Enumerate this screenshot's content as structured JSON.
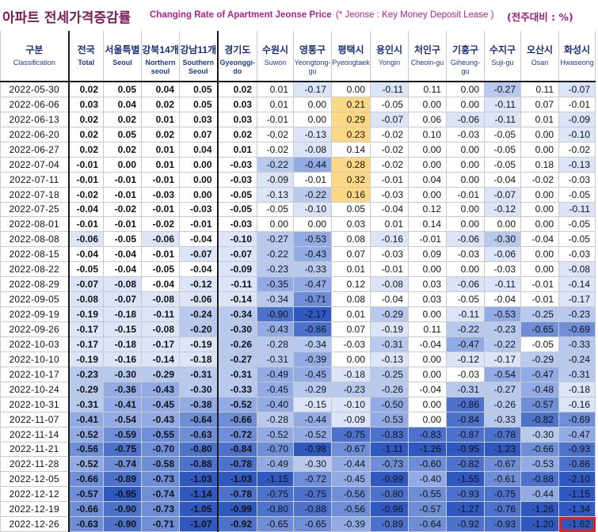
{
  "title": {
    "korean": "아파트 전세가격증감률",
    "english": "Changing Rate of Apartment Jeonse Price",
    "note": "(* Jeonse : Key Money Deposit Lease )",
    "unit": "(전주대비 : %)"
  },
  "columns": [
    {
      "ko": "구분",
      "en": "Classification"
    },
    {
      "ko": "전국",
      "en": "Total"
    },
    {
      "ko": "서울특별",
      "en": "Seoul"
    },
    {
      "ko": "강북14개",
      "en": "Northern seoul"
    },
    {
      "ko": "강남11개",
      "en": "Southern Seoul"
    },
    {
      "ko": "경기도",
      "en": "Gyeonggi-do"
    },
    {
      "ko": "수원시",
      "en": "Suwon"
    },
    {
      "ko": "영통구",
      "en": "Yeongtong-gu"
    },
    {
      "ko": "평택시",
      "en": "Pyeongtaek"
    },
    {
      "ko": "용인시",
      "en": "Yongin"
    },
    {
      "ko": "처인구",
      "en": "Cheoin-gu"
    },
    {
      "ko": "기흥구",
      "en": "Giheung-gu"
    },
    {
      "ko": "수지구",
      "en": "Suji-gu"
    },
    {
      "ko": "오산시",
      "en": "Osan"
    },
    {
      "ko": "화성시",
      "en": "Hwaseong"
    }
  ],
  "rows": [
    {
      "date": "2022-05-30",
      "values": [
        "0.02",
        "0.05",
        "0.04",
        "0.05",
        "0.02",
        "0.01",
        "-0.17",
        "0.00",
        "-0.11",
        "0.11",
        "0.00",
        "-0.27",
        "0.11",
        "-0.07"
      ]
    },
    {
      "date": "2022-06-06",
      "values": [
        "0.03",
        "0.04",
        "0.02",
        "0.05",
        "0.03",
        "0.01",
        "0.00",
        "0.21",
        "-0.05",
        "0.00",
        "0.00",
        "-0.11",
        "0.07",
        "-0.01"
      ]
    },
    {
      "date": "2022-06-13",
      "values": [
        "0.02",
        "0.02",
        "0.01",
        "0.03",
        "0.03",
        "-0.01",
        "0.00",
        "0.29",
        "-0.07",
        "0.06",
        "-0.06",
        "-0.11",
        "0.01",
        "-0.09"
      ]
    },
    {
      "date": "2022-06-20",
      "values": [
        "0.02",
        "0.05",
        "0.02",
        "0.07",
        "0.02",
        "-0.02",
        "-0.13",
        "0.23",
        "-0.02",
        "0.10",
        "-0.03",
        "-0.05",
        "0.00",
        "-0.10"
      ]
    },
    {
      "date": "2022-06-27",
      "values": [
        "0.02",
        "0.02",
        "0.01",
        "0.04",
        "0.01",
        "-0.02",
        "-0.08",
        "0.14",
        "-0.02",
        "0.00",
        "0.00",
        "-0.05",
        "0.00",
        "-0.02"
      ]
    },
    {
      "date": "2022-07-04",
      "values": [
        "-0.01",
        "0.00",
        "0.01",
        "0.00",
        "-0.03",
        "-0.22",
        "-0.44",
        "0.28",
        "-0.02",
        "0.00",
        "0.00",
        "-0.05",
        "0.18",
        "-0.13"
      ]
    },
    {
      "date": "2022-07-11",
      "values": [
        "-0.01",
        "-0.01",
        "-0.01",
        "0.00",
        "-0.03",
        "-0.09",
        "-0.01",
        "0.32",
        "-0.01",
        "0.04",
        "0.00",
        "-0.04",
        "-0.02",
        "-0.03"
      ]
    },
    {
      "date": "2022-07-18",
      "values": [
        "-0.02",
        "-0.01",
        "-0.03",
        "0.00",
        "-0.05",
        "-0.13",
        "-0.22",
        "0.16",
        "-0.03",
        "0.00",
        "-0.01",
        "-0.07",
        "0.00",
        "-0.05"
      ]
    },
    {
      "date": "2022-07-25",
      "values": [
        "-0.04",
        "-0.02",
        "-0.01",
        "-0.03",
        "-0.05",
        "-0.05",
        "-0.10",
        "0.05",
        "-0.04",
        "0.12",
        "0.00",
        "-0.12",
        "0.00",
        "-0.11"
      ]
    },
    {
      "date": "2022-08-01",
      "values": [
        "-0.01",
        "-0.01",
        "-0.02",
        "-0.01",
        "-0.03",
        "0.00",
        "0.00",
        "0.03",
        "0.01",
        "0.14",
        "0.00",
        "0.00",
        "0.00",
        "-0.05"
      ]
    },
    {
      "date": "2022-08-08",
      "values": [
        "-0.06",
        "-0.05",
        "-0.06",
        "-0.04",
        "-0.10",
        "-0.27",
        "-0.53",
        "0.08",
        "-0.16",
        "-0.01",
        "-0.06",
        "-0.30",
        "-0.04",
        "-0.05"
      ]
    },
    {
      "date": "2022-08-15",
      "values": [
        "-0.04",
        "-0.04",
        "-0.01",
        "-0.07",
        "-0.07",
        "-0.22",
        "-0.43",
        "0.07",
        "-0.03",
        "0.09",
        "-0.03",
        "-0.06",
        "0.00",
        "-0.03"
      ]
    },
    {
      "date": "2022-08-22",
      "values": [
        "-0.05",
        "-0.04",
        "-0.05",
        "-0.04",
        "-0.09",
        "-0.23",
        "-0.33",
        "0.01",
        "-0.01",
        "0.00",
        "0.00",
        "-0.03",
        "0.00",
        "-0.08"
      ]
    },
    {
      "date": "2022-08-29",
      "values": [
        "-0.07",
        "-0.08",
        "-0.04",
        "-0.12",
        "-0.11",
        "-0.35",
        "-0.47",
        "0.12",
        "-0.08",
        "0.03",
        "-0.06",
        "-0.11",
        "-0.01",
        "-0.14"
      ]
    },
    {
      "date": "2022-09-05",
      "values": [
        "-0.08",
        "-0.07",
        "-0.08",
        "-0.06",
        "-0.14",
        "-0.34",
        "-0.71",
        "0.08",
        "-0.04",
        "0.03",
        "-0.05",
        "-0.04",
        "-0.01",
        "-0.17"
      ]
    },
    {
      "date": "2022-09-19",
      "values": [
        "-0.19",
        "-0.18",
        "-0.11",
        "-0.24",
        "-0.34",
        "-0.90",
        "-2.17",
        "0.01",
        "-0.29",
        "0.00",
        "-0.11",
        "-0.53",
        "-0.25",
        "-0.23"
      ]
    },
    {
      "date": "2022-09-26",
      "values": [
        "-0.17",
        "-0.15",
        "-0.08",
        "-0.20",
        "-0.30",
        "-0.43",
        "-0.86",
        "0.07",
        "-0.19",
        "0.11",
        "-0.22",
        "-0.23",
        "-0.65",
        "-0.69"
      ]
    },
    {
      "date": "2022-10-03",
      "values": [
        "-0.17",
        "-0.18",
        "-0.17",
        "-0.19",
        "-0.26",
        "-0.28",
        "-0.34",
        "-0.03",
        "-0.31",
        "-0.04",
        "-0.47",
        "-0.22",
        "-0.05",
        "-0.33"
      ]
    },
    {
      "date": "2022-10-10",
      "values": [
        "-0.19",
        "-0.16",
        "-0.14",
        "-0.18",
        "-0.27",
        "-0.31",
        "-0.39",
        "0.00",
        "-0.13",
        "0.00",
        "-0.12",
        "-0.17",
        "-0.29",
        "-0.24"
      ]
    },
    {
      "date": "2022-10-17",
      "values": [
        "-0.23",
        "-0.30",
        "-0.29",
        "-0.31",
        "-0.31",
        "-0.49",
        "-0.45",
        "-0.18",
        "-0.25",
        "0.00",
        "-0.03",
        "-0.54",
        "-0.47",
        "-0.31"
      ]
    },
    {
      "date": "2022-10-24",
      "values": [
        "-0.29",
        "-0.36",
        "-0.43",
        "-0.30",
        "-0.33",
        "-0.45",
        "-0.29",
        "-0.23",
        "-0.26",
        "-0.04",
        "-0.31",
        "-0.27",
        "-0.48",
        "-0.18"
      ]
    },
    {
      "date": "2022-10-31",
      "values": [
        "-0.31",
        "-0.41",
        "-0.45",
        "-0.38",
        "-0.52",
        "-0.40",
        "-0.15",
        "-0.10",
        "-0.50",
        "0.00",
        "-0.86",
        "-0.26",
        "-0.57",
        "-0.16"
      ]
    },
    {
      "date": "2022-11-07",
      "values": [
        "-0.41",
        "-0.54",
        "-0.43",
        "-0.64",
        "-0.66",
        "-0.28",
        "-0.44",
        "-0.09",
        "-0.53",
        "0.00",
        "-0.84",
        "-0.33",
        "-0.82",
        "-0.69"
      ]
    },
    {
      "date": "2022-11-14",
      "values": [
        "-0.52",
        "-0.59",
        "-0.55",
        "-0.63",
        "-0.72",
        "-0.52",
        "-0.52",
        "-0.75",
        "-0.83",
        "-0.83",
        "-0.87",
        "-0.78",
        "-0.30",
        "-0.47"
      ]
    },
    {
      "date": "2022-11-21",
      "values": [
        "-0.56",
        "-0.75",
        "-0.70",
        "-0.80",
        "-0.84",
        "-0.70",
        "-0.98",
        "-0.67",
        "-1.11",
        "-1.26",
        "-0.95",
        "-1.23",
        "-0.66",
        "-0.93"
      ]
    },
    {
      "date": "2022-11-28",
      "values": [
        "-0.52",
        "-0.74",
        "-0.58",
        "-0.88",
        "-0.78",
        "-0.49",
        "-0.30",
        "-0.44",
        "-0.73",
        "-0.60",
        "-0.82",
        "-0.67",
        "-0.53",
        "-0.86"
      ]
    },
    {
      "date": "2022-12-05",
      "values": [
        "-0.66",
        "-0.89",
        "-0.73",
        "-1.03",
        "-1.03",
        "-1.15",
        "-0.72",
        "-0.45",
        "-0.99",
        "-0.40",
        "-1.55",
        "-0.61",
        "-0.88",
        "-2.10"
      ]
    },
    {
      "date": "2022-12-12",
      "values": [
        "-0.57",
        "-0.95",
        "-0.74",
        "-1.14",
        "-0.78",
        "-0.75",
        "-0.75",
        "-0.56",
        "-0.80",
        "-0.55",
        "-0.93",
        "-0.75",
        "-0.44",
        "-1.15"
      ]
    },
    {
      "date": "2022-12-19",
      "values": [
        "-0.66",
        "-0.90",
        "-0.73",
        "-1.05",
        "-0.99",
        "-0.80",
        "-0.88",
        "-0.56",
        "-0.96",
        "-0.57",
        "-1.27",
        "-0.76",
        "-1.26",
        "-1.34"
      ]
    },
    {
      "date": "2022-12-26",
      "values": [
        "-0.63",
        "-0.90",
        "-0.71",
        "-1.07",
        "-0.92",
        "-0.65",
        "-0.65",
        "-0.39",
        "-0.89",
        "-0.64",
        "-0.92",
        "-0.93",
        "-1.20",
        "-1.62"
      ]
    }
  ],
  "colors": {
    "negative_scale": [
      "#ffffff",
      "#dbe5f7",
      "#b8c9ee",
      "#93abe4",
      "#6f8ed8",
      "#4d72cc",
      "#2f59c0"
    ],
    "positive_highlight": "#fcd784",
    "highlight_border": "#e0201b"
  }
}
